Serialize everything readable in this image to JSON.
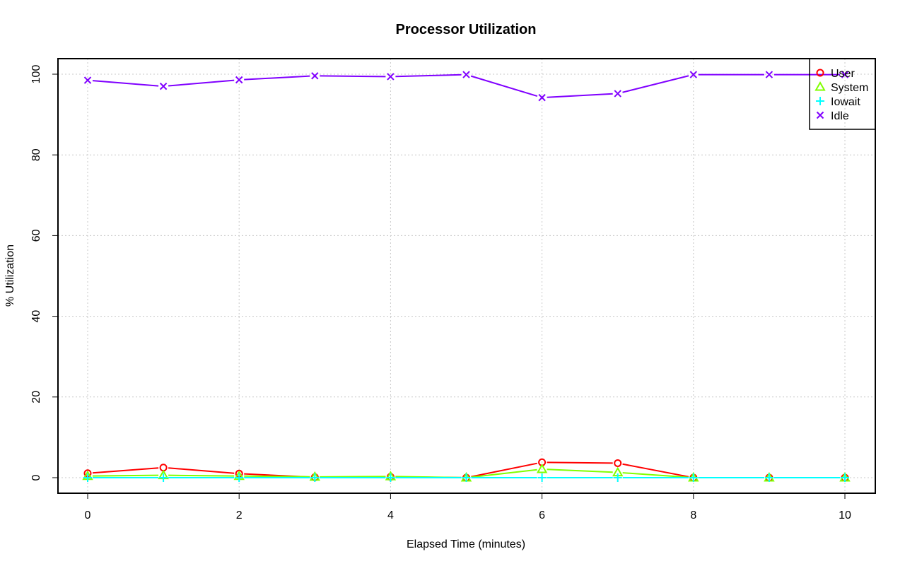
{
  "chart_data": {
    "type": "line",
    "title": "Processor Utilization",
    "xlabel": "Elapsed Time (minutes)",
    "ylabel": "% Utilization",
    "xlim": [
      0,
      10
    ],
    "ylim": [
      0,
      100
    ],
    "x_ticks": [
      0,
      2,
      4,
      6,
      8,
      10
    ],
    "y_ticks": [
      0,
      20,
      40,
      60,
      80,
      100
    ],
    "grid": true,
    "legend_position": "top-right",
    "x": [
      0,
      1,
      2,
      3,
      4,
      5,
      6,
      7,
      8,
      9,
      10
    ],
    "series": [
      {
        "name": "User",
        "color": "#ff0000",
        "marker": "circle",
        "values": [
          1.1,
          2.5,
          1.0,
          0.1,
          0.2,
          0.0,
          3.8,
          3.6,
          0.0,
          0.0,
          0.0
        ]
      },
      {
        "name": "System",
        "color": "#80ff00",
        "marker": "triangle",
        "values": [
          0.4,
          0.6,
          0.4,
          0.2,
          0.3,
          0.0,
          2.1,
          1.3,
          0.0,
          0.0,
          0.0
        ]
      },
      {
        "name": "Iowait",
        "color": "#00ffff",
        "marker": "plus",
        "values": [
          0.0,
          0.0,
          0.0,
          0.0,
          0.0,
          0.0,
          0.0,
          0.0,
          0.0,
          0.0,
          0.0
        ]
      },
      {
        "name": "Idle",
        "color": "#8000ff",
        "marker": "cross",
        "values": [
          98.5,
          97.0,
          98.6,
          99.6,
          99.4,
          99.9,
          94.2,
          95.2,
          99.9,
          99.9,
          99.9
        ]
      }
    ]
  }
}
